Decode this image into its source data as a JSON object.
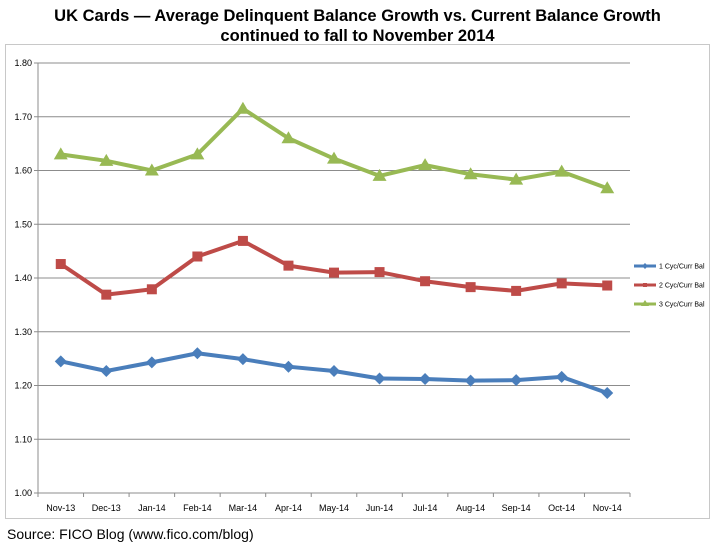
{
  "title": {
    "line1": "UK Cards — Average Delinquent Balance Growth vs. Current Balance Growth",
    "line2": "continued to fall to November 2014"
  },
  "source": "Source:  FICO Blog (www.fico.com/blog)",
  "chart_data": {
    "type": "line",
    "categories": [
      "Nov-13",
      "Dec-13",
      "Jan-14",
      "Feb-14",
      "Mar-14",
      "Apr-14",
      "May-14",
      "Jun-14",
      "Jul-14",
      "Aug-14",
      "Sep-14",
      "Oct-14",
      "Nov-14"
    ],
    "ylim": [
      1.0,
      1.8
    ],
    "yticks": [
      "1.00",
      "1.10",
      "1.20",
      "1.30",
      "1.40",
      "1.50",
      "1.60",
      "1.70",
      "1.80"
    ],
    "grid": true,
    "legend_position": "right",
    "series": [
      {
        "name": "1 Cyc/Curr Bal",
        "color": "#4a7ebb",
        "marker": "diamond",
        "values": [
          1.245,
          1.227,
          1.243,
          1.26,
          1.249,
          1.235,
          1.227,
          1.213,
          1.212,
          1.209,
          1.21,
          1.216,
          1.186
        ]
      },
      {
        "name": "2 Cyc/Curr Bal",
        "color": "#be4b48",
        "marker": "square",
        "values": [
          1.426,
          1.369,
          1.379,
          1.44,
          1.469,
          1.423,
          1.41,
          1.411,
          1.394,
          1.383,
          1.376,
          1.39,
          1.386
        ]
      },
      {
        "name": "3 Cyc/Curr Bal",
        "color": "#98b954",
        "marker": "triangle",
        "values": [
          1.63,
          1.618,
          1.6,
          1.63,
          1.715,
          1.66,
          1.622,
          1.59,
          1.61,
          1.593,
          1.583,
          1.598,
          1.567
        ]
      }
    ]
  }
}
